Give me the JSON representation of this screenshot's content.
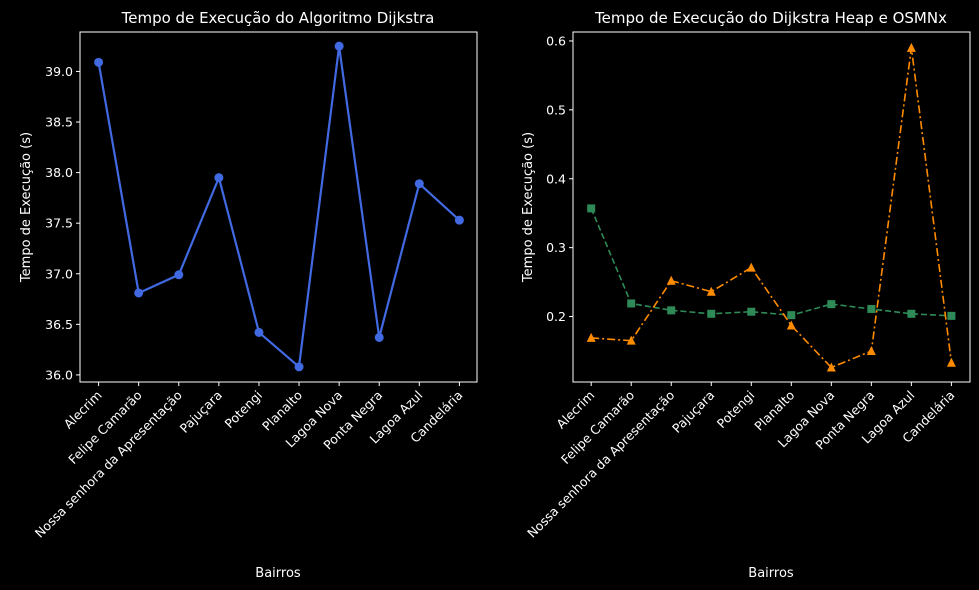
{
  "chart_data": [
    {
      "type": "line",
      "title": "Tempo de Execução do Algoritmo Dijkstra",
      "xlabel": "Bairros",
      "ylabel": "Tempo de Execução (s)",
      "categories": [
        "Alecrim",
        "Felipe Camarão",
        "Nossa senhora da Apresentação",
        "Pajuçara",
        "Potengi",
        "Planalto",
        "Lagoa Nova",
        "Ponta Negra",
        "Lagoa Azul",
        "Candelária"
      ],
      "ylim": [
        35.93,
        39.39
      ],
      "yticks": [
        36.0,
        36.5,
        37.0,
        37.5,
        38.0,
        38.5,
        39.0
      ],
      "ytick_labels": [
        "36.0",
        "36.5",
        "37.0",
        "37.5",
        "38.0",
        "38.5",
        "39.0"
      ],
      "grid": false,
      "series": [
        {
          "values": [
            39.09,
            36.81,
            36.99,
            37.95,
            36.42,
            36.08,
            39.25,
            36.37,
            37.89,
            37.53
          ],
          "color": "#4169e1",
          "marker": "circle",
          "linestyle": "solid"
        }
      ]
    },
    {
      "type": "line",
      "title": "Tempo de Execução do Dijkstra Heap e OSMNx",
      "xlabel": "Bairros",
      "ylabel": "Tempo de Execução (s)",
      "categories": [
        "Alecrim",
        "Felipe Camarão",
        "Nossa senhora da Apresentação",
        "Pajuçara",
        "Potengi",
        "Planalto",
        "Lagoa Nova",
        "Ponta Negra",
        "Lagoa Azul",
        "Candelária"
      ],
      "ylim": [
        0.105,
        0.613
      ],
      "yticks": [
        0.2,
        0.3,
        0.4,
        0.5,
        0.6
      ],
      "ytick_labels": [
        "0.2",
        "0.3",
        "0.4",
        "0.5",
        "0.6"
      ],
      "grid": false,
      "series": [
        {
          "values": [
            0.357,
            0.219,
            0.209,
            0.204,
            0.207,
            0.202,
            0.218,
            0.211,
            0.204,
            0.201
          ],
          "color": "#2e8b57",
          "marker": "square",
          "linestyle": "dashed"
        },
        {
          "values": [
            0.169,
            0.165,
            0.252,
            0.236,
            0.271,
            0.187,
            0.126,
            0.15,
            0.59,
            0.133
          ],
          "color": "#ff8c00",
          "marker": "triangle",
          "linestyle": "dashdot"
        }
      ]
    }
  ]
}
